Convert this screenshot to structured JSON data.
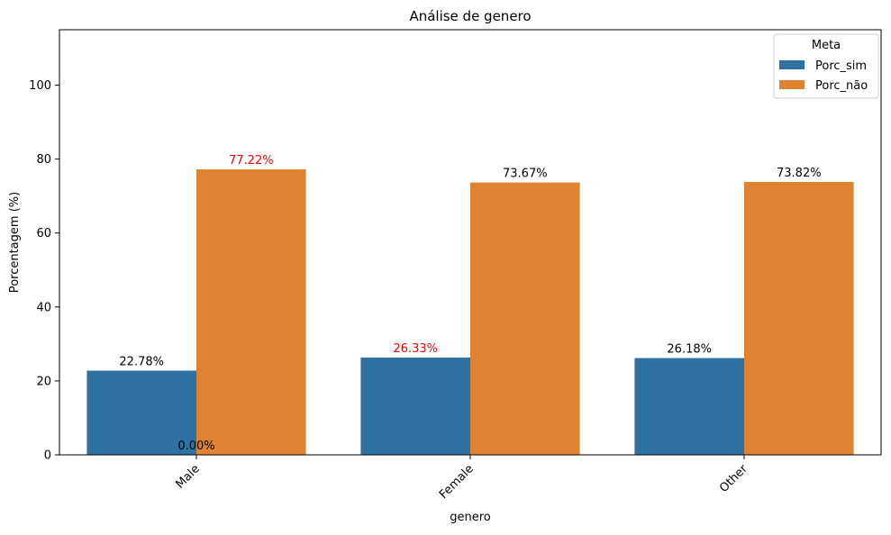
{
  "chart_data": {
    "type": "bar",
    "title": "Análise de genero",
    "xlabel": "genero",
    "ylabel": "Porcentagem (%)",
    "categories": [
      "Male",
      "Female",
      "Other"
    ],
    "ylim": [
      0,
      115
    ],
    "yticks": [
      "0",
      "20",
      "40",
      "60",
      "80",
      "100"
    ],
    "grid": false,
    "legend": {
      "title": "Meta",
      "position": "top-right"
    },
    "series": [
      {
        "name": "Porc_sim",
        "color": "#2e72a3",
        "values": [
          22.78,
          26.33,
          26.18
        ],
        "labels": [
          "22.78%",
          "26.33%",
          "26.18%"
        ],
        "label_colors": [
          "#000000",
          "#ff0000",
          "#000000"
        ]
      },
      {
        "name": "Porc_não",
        "color": "#e0822f",
        "values": [
          77.22,
          73.67,
          73.82
        ],
        "labels": [
          "77.22%",
          "73.67%",
          "73.82%"
        ],
        "label_colors": [
          "#ff0000",
          "#000000",
          "#000000"
        ]
      }
    ],
    "annotations": [
      {
        "text": "0.00%",
        "category": "Male",
        "value": 0
      }
    ]
  }
}
